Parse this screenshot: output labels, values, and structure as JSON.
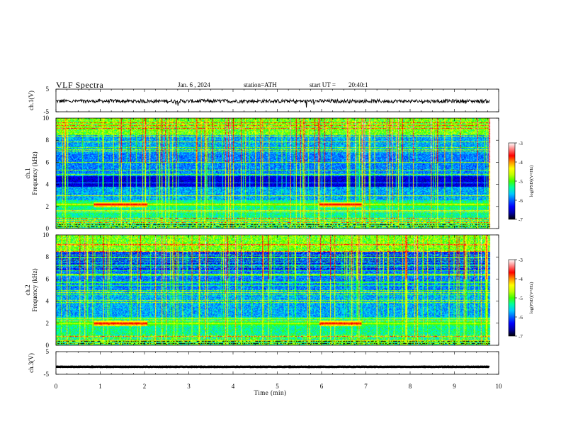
{
  "header": {
    "title": "VLF Spectra",
    "date": "Jan. 6 , 2024",
    "station": "station=ATH",
    "start_label": "start UT =",
    "start_value": "20:40:1"
  },
  "chart_data": [
    {
      "type": "line",
      "panel": "ch1-waveform",
      "ylabel": "ch.1(V)",
      "ylim": [
        -5,
        5
      ],
      "yticks": [
        "5",
        "-5"
      ],
      "xlim": [
        0,
        10
      ],
      "x_end": 9.8,
      "baseline": -0.3,
      "noise_amplitude": 1.0
    },
    {
      "type": "heatmap",
      "panel": "ch1-spectrogram",
      "ylabel": "ch.1\nFrequency (kHz)",
      "ylim": [
        0,
        10
      ],
      "yticks": [
        "0",
        "2",
        "4",
        "6",
        "8",
        "10"
      ],
      "xlim": [
        0,
        10
      ],
      "x_end": 9.8,
      "tone_bands_khz": [
        2.2
      ],
      "tone_segments_min": [
        [
          0.85,
          2.05
        ],
        [
          5.95,
          6.9
        ]
      ],
      "quiet_band_khz": [
        3.8,
        4.8
      ]
    },
    {
      "type": "heatmap",
      "panel": "ch2-spectrogram",
      "ylabel": "ch.2\nFrequency (kHz)",
      "ylim": [
        0,
        10
      ],
      "yticks": [
        "0",
        "2",
        "4",
        "6",
        "8",
        "10"
      ],
      "xlim": [
        0,
        10
      ],
      "x_end": 9.8,
      "tone_bands_khz": [
        2.0
      ],
      "tone_segments_min": [
        [
          0.85,
          2.05
        ],
        [
          5.95,
          6.9
        ]
      ],
      "quiet_band_khz": [
        6.8,
        9.5
      ]
    },
    {
      "type": "line",
      "panel": "ch3-waveform",
      "ylabel": "ch.3(V)",
      "ylim": [
        -5,
        5
      ],
      "yticks": [
        "5",
        "-5"
      ],
      "xlim": [
        0,
        10
      ],
      "x_end": 9.8,
      "baseline": -1.7,
      "noise_amplitude": 0.1,
      "xlabel": "Time (min)",
      "xticks": [
        "0",
        "1",
        "2",
        "3",
        "4",
        "5",
        "6",
        "7",
        "8",
        "9",
        "10"
      ]
    }
  ],
  "colorbar": {
    "label": "log(PSD)(V²/Hz)",
    "range": [
      -7,
      -3
    ],
    "ticks": [
      "-3",
      "-4",
      "-5",
      "-6",
      "-7"
    ],
    "colors": [
      "#000000",
      "#0000a0",
      "#0000ff",
      "#0060ff",
      "#00c8ff",
      "#00ffa0",
      "#40ff00",
      "#c0ff00",
      "#ffff00",
      "#ff9000",
      "#ff0000",
      "#ff8080",
      "#ffffff"
    ]
  }
}
